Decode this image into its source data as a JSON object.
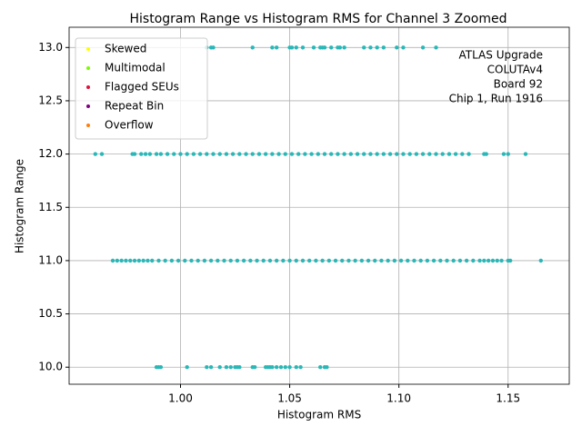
{
  "chart_data": {
    "type": "scatter",
    "title": "Histogram Range vs Histogram RMS for Channel 3 Zoomed",
    "x_label": "Histogram RMS",
    "y_label": "Histogram Range",
    "annotation": [
      "ATLAS Upgrade",
      "COLUTAv4",
      " Board 92",
      "Chip 1, Run 1916"
    ],
    "xlim": [
      0.949,
      1.178
    ],
    "ylim": [
      9.84,
      13.19
    ],
    "xticks": [
      {
        "value": 1,
        "label": "1.00"
      },
      1.05,
      {
        "value": 1.1,
        "label": "1.10"
      },
      1.15
    ],
    "yticks": [
      {
        "value": 10,
        "label": "10.0"
      },
      10.5,
      {
        "value": 11,
        "label": "11.0"
      },
      11.5,
      {
        "value": 12,
        "label": "12.0"
      },
      12.5,
      {
        "value": 13,
        "label": "13.0"
      }
    ],
    "grid": true,
    "legend": "upper left",
    "series": [
      {
        "name": "Skewed",
        "color": "#ffff00",
        "x": [],
        "values": []
      },
      {
        "name": "Multimodal",
        "color": "#7cfc00",
        "x": [],
        "values": []
      },
      {
        "name": "Flagged SEUs",
        "color": "#dc143c",
        "x": [],
        "values": []
      },
      {
        "name": "Repeat Bin",
        "color": "#800080",
        "x": [],
        "values": []
      },
      {
        "name": "Overflow",
        "color": "#ff7f0e",
        "x": [],
        "values": []
      },
      {
        "color": "#2bb7b7",
        "x": [
          1.012,
          1.014,
          1.015,
          1.033,
          1.042,
          1.044,
          1.05,
          1.051,
          1.053,
          1.056,
          1.061,
          1.064,
          1.065,
          1.066,
          1.069,
          1.072,
          1.073,
          1.075,
          1.084,
          1.087,
          1.09,
          1.093,
          1.099,
          1.102,
          1.111,
          1.117
        ],
        "values": [
          13,
          13,
          13,
          13,
          13,
          13,
          13,
          13,
          13,
          13,
          13,
          13,
          13,
          13,
          13,
          13,
          13,
          13,
          13,
          13,
          13,
          13,
          13,
          13,
          13,
          13
        ]
      },
      {
        "color": "#2bb7b7",
        "x": [
          0.961,
          0.964,
          0.978,
          0.979,
          0.982,
          0.984,
          0.986,
          0.989,
          0.991,
          0.994,
          0.997,
          1.0,
          1.003,
          1.006,
          1.009,
          1.012,
          1.015,
          1.018,
          1.021,
          1.024,
          1.027,
          1.03,
          1.033,
          1.036,
          1.039,
          1.042,
          1.045,
          1.048,
          1.051,
          1.054,
          1.057,
          1.06,
          1.063,
          1.066,
          1.069,
          1.072,
          1.075,
          1.078,
          1.081,
          1.084,
          1.087,
          1.09,
          1.093,
          1.096,
          1.099,
          1.102,
          1.105,
          1.108,
          1.111,
          1.114,
          1.117,
          1.12,
          1.123,
          1.126,
          1.129,
          1.132,
          1.139,
          1.14,
          1.148,
          1.15,
          1.158
        ],
        "values": [
          12,
          12,
          12,
          12,
          12,
          12,
          12,
          12,
          12,
          12,
          12,
          12,
          12,
          12,
          12,
          12,
          12,
          12,
          12,
          12,
          12,
          12,
          12,
          12,
          12,
          12,
          12,
          12,
          12,
          12,
          12,
          12,
          12,
          12,
          12,
          12,
          12,
          12,
          12,
          12,
          12,
          12,
          12,
          12,
          12,
          12,
          12,
          12,
          12,
          12,
          12,
          12,
          12,
          12,
          12,
          12,
          12,
          12,
          12,
          12,
          12
        ]
      },
      {
        "color": "#2bb7b7",
        "x": [
          0.969,
          0.971,
          0.973,
          0.975,
          0.977,
          0.979,
          0.981,
          0.983,
          0.985,
          0.987,
          0.99,
          0.993,
          0.996,
          0.999,
          1.002,
          1.005,
          1.008,
          1.011,
          1.014,
          1.017,
          1.02,
          1.023,
          1.026,
          1.029,
          1.032,
          1.035,
          1.038,
          1.041,
          1.044,
          1.047,
          1.05,
          1.053,
          1.056,
          1.059,
          1.062,
          1.065,
          1.068,
          1.071,
          1.074,
          1.077,
          1.08,
          1.083,
          1.086,
          1.089,
          1.092,
          1.095,
          1.098,
          1.101,
          1.104,
          1.107,
          1.11,
          1.113,
          1.116,
          1.119,
          1.122,
          1.125,
          1.128,
          1.131,
          1.134,
          1.137,
          1.139,
          1.141,
          1.143,
          1.145,
          1.147,
          1.15,
          1.151,
          1.165
        ],
        "values": [
          11,
          11,
          11,
          11,
          11,
          11,
          11,
          11,
          11,
          11,
          11,
          11,
          11,
          11,
          11,
          11,
          11,
          11,
          11,
          11,
          11,
          11,
          11,
          11,
          11,
          11,
          11,
          11,
          11,
          11,
          11,
          11,
          11,
          11,
          11,
          11,
          11,
          11,
          11,
          11,
          11,
          11,
          11,
          11,
          11,
          11,
          11,
          11,
          11,
          11,
          11,
          11,
          11,
          11,
          11,
          11,
          11,
          11,
          11,
          11,
          11,
          11,
          11,
          11,
          11,
          11,
          11,
          11
        ]
      },
      {
        "color": "#2bb7b7",
        "x": [
          0.989,
          0.99,
          0.991,
          1.003,
          1.012,
          1.014,
          1.018,
          1.021,
          1.023,
          1.025,
          1.026,
          1.027,
          1.033,
          1.034,
          1.039,
          1.04,
          1.041,
          1.042,
          1.044,
          1.046,
          1.048,
          1.05,
          1.053,
          1.055,
          1.064,
          1.066,
          1.067
        ],
        "values": [
          10,
          10,
          10,
          10,
          10,
          10,
          10,
          10,
          10,
          10,
          10,
          10,
          10,
          10,
          10,
          10,
          10,
          10,
          10,
          10,
          10,
          10,
          10,
          10,
          10,
          10,
          10
        ]
      }
    ]
  }
}
